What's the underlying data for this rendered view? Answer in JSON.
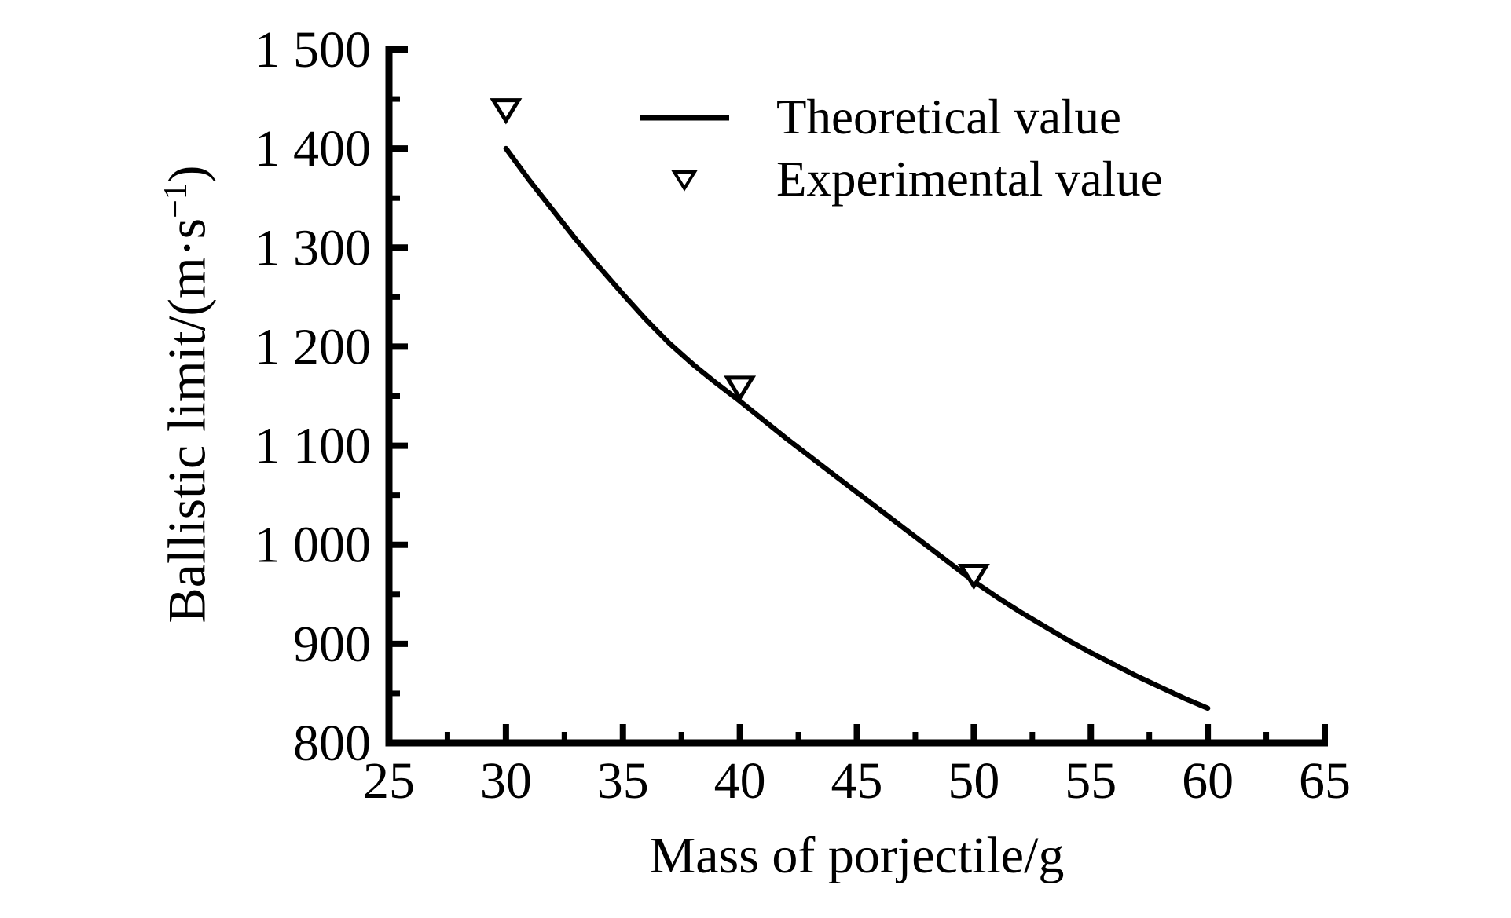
{
  "chart_data": {
    "type": "line+scatter",
    "xlabel": "Mass of porjectile/g",
    "ylabel_main": "Ballistic limit/(m·s",
    "ylabel_sup": "−1",
    "ylabel_close": ")",
    "xlim": [
      25,
      65
    ],
    "ylim": [
      800,
      1500
    ],
    "x_major_ticks": [
      25,
      30,
      35,
      40,
      45,
      50,
      55,
      60,
      65
    ],
    "x_major_labels": [
      "25",
      "30",
      "35",
      "40",
      "45",
      "50",
      "55",
      "60",
      "65"
    ],
    "x_minor_ticks": [
      27.5,
      32.5,
      37.5,
      42.5,
      47.5,
      52.5,
      57.5,
      62.5
    ],
    "y_major_ticks": [
      800,
      900,
      1000,
      1100,
      1200,
      1300,
      1400,
      1500
    ],
    "y_major_labels": [
      "800",
      "900",
      "1 000",
      "1 100",
      "1 200",
      "1 300",
      "1 400",
      "1 500"
    ],
    "y_minor_ticks": [
      850,
      950,
      1050,
      1150,
      1250,
      1350,
      1450
    ],
    "grid": false,
    "series": [
      {
        "name": "Theoretical value",
        "type": "line",
        "x": [
          30,
          31,
          32,
          33,
          34,
          35,
          36,
          37,
          38,
          39,
          40,
          41,
          42,
          43,
          44,
          45,
          46,
          47,
          48,
          49,
          50,
          51,
          52,
          53,
          54,
          55,
          56,
          57,
          58,
          59,
          60
        ],
        "y": [
          1400,
          1368,
          1338,
          1308,
          1280,
          1253,
          1227,
          1203,
          1182,
          1163,
          1145,
          1126,
          1107,
          1089,
          1071,
          1053,
          1035,
          1017,
          999,
          981,
          963,
          947,
          932,
          918,
          904,
          891,
          879,
          867,
          856,
          845,
          835
        ]
      },
      {
        "name": "Experimental value",
        "type": "scatter",
        "marker": "triangle-down-open",
        "x": [
          30,
          40,
          50
        ],
        "y": [
          1440,
          1160,
          970
        ]
      }
    ],
    "legend": {
      "position": "upper-right-inside",
      "items": [
        {
          "label": "Theoretical value",
          "swatch": "line"
        },
        {
          "label": "Experimental value",
          "swatch": "triangle-down-open"
        }
      ]
    },
    "colors": {
      "foreground": "#000000",
      "background": "#ffffff"
    }
  }
}
